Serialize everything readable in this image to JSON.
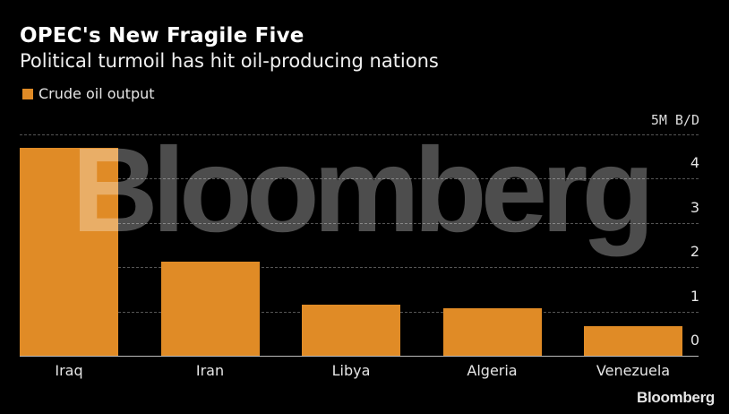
{
  "header": {
    "title": "OPEC's New Fragile Five",
    "subtitle": "Political turmoil has hit oil-producing nations"
  },
  "legend": {
    "label": "Crude oil output",
    "color": "#e08b26"
  },
  "axis": {
    "unit": "5M B/D",
    "ticks": [
      "4",
      "3",
      "2",
      "1",
      "0"
    ]
  },
  "watermark": "Bloomberg",
  "logo": "Bloomberg",
  "chart_data": {
    "type": "bar",
    "title": "OPEC's New Fragile Five",
    "subtitle": "Political turmoil has hit oil-producing nations",
    "categories": [
      "Iraq",
      "Iran",
      "Libya",
      "Algeria",
      "Venezuela"
    ],
    "series": [
      {
        "name": "Crude oil output",
        "color": "#e08b26",
        "values": [
          4.7,
          2.13,
          1.15,
          1.07,
          0.67
        ]
      }
    ],
    "xlabel": "",
    "ylabel": "Million barrels per day",
    "ylim": [
      0,
      5
    ],
    "yticks": [
      0,
      1,
      2,
      3,
      4,
      5
    ],
    "ytick_labels": [
      "0",
      "1",
      "2",
      "3",
      "4",
      "5M B/D"
    ],
    "grid": true,
    "legend_position": "top-left",
    "y_axis_position": "right"
  }
}
